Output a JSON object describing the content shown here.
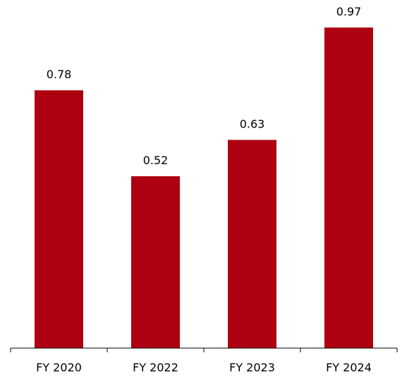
{
  "chart_data": {
    "type": "bar",
    "categories": [
      "FY 2020",
      "FY 2022",
      "FY 2023",
      "FY 2024"
    ],
    "values": [
      0.78,
      0.52,
      0.63,
      0.97
    ],
    "value_labels": [
      "0.78",
      "0.52",
      "0.63",
      "0.97"
    ],
    "title": "",
    "xlabel": "",
    "ylabel": "",
    "ylim": [
      0,
      1.0
    ],
    "grid": false,
    "legend": "none",
    "bar_color": "#AD0010",
    "axis_color": "#000000"
  }
}
